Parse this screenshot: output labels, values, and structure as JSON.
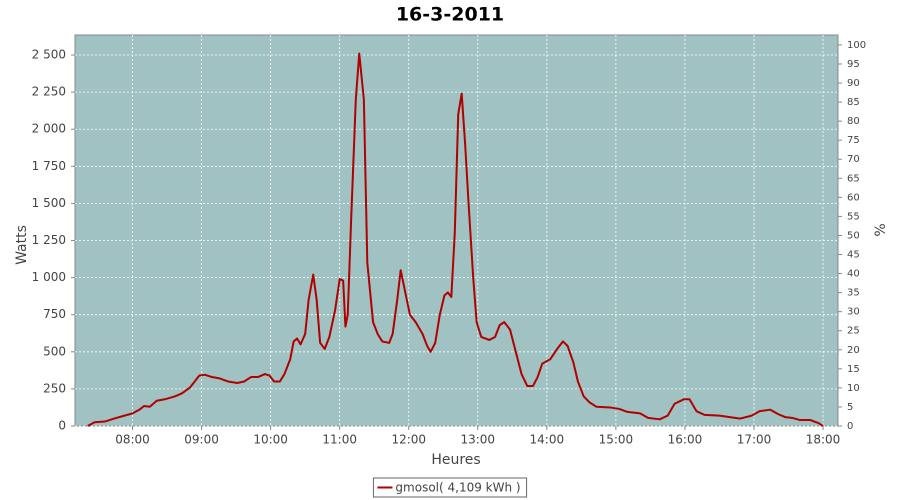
{
  "chart_data": {
    "type": "line",
    "title": "16-3-2011",
    "x_label": "Heures",
    "y_label": "Watts",
    "y2_label": "%",
    "x": [
      441,
      447,
      456,
      464,
      473,
      480,
      486,
      490,
      495,
      501,
      508,
      517,
      523,
      530,
      534,
      538,
      543,
      549,
      556,
      563,
      571,
      577,
      583,
      589,
      595,
      599,
      603,
      608,
      612,
      617,
      620,
      623,
      626,
      630,
      633,
      637,
      640,
      643,
      647,
      651,
      656,
      660,
      663,
      665,
      667,
      670,
      674,
      677,
      681,
      684,
      689,
      693,
      697,
      703,
      706,
      710,
      713,
      717,
      721,
      726,
      732,
      736,
      739,
      743,
      747,
      751,
      754,
      757,
      760,
      763,
      766,
      769,
      772,
      776,
      779,
      783,
      790,
      795,
      799,
      803,
      808,
      813,
      818,
      823,
      828,
      832,
      836,
      843,
      849,
      854,
      858,
      863,
      867,
      872,
      877,
      883,
      895,
      903,
      910,
      921,
      928,
      938,
      945,
      951,
      959,
      964,
      970,
      977,
      990,
      999,
      1008,
      1018,
      1025,
      1034,
      1041,
      1047,
      1053,
      1060,
      1069,
      1076,
      1080
    ],
    "series": [
      {
        "name": "gmosol( 4,109 kWh )",
        "color": "#b00000",
        "values": [
          0,
          25,
          30,
          50,
          70,
          85,
          110,
          135,
          130,
          170,
          180,
          200,
          220,
          260,
          300,
          340,
          345,
          330,
          320,
          300,
          290,
          300,
          330,
          330,
          350,
          340,
          300,
          300,
          350,
          450,
          570,
          590,
          550,
          620,
          850,
          1020,
          850,
          560,
          520,
          600,
          780,
          990,
          980,
          670,
          750,
          1400,
          2200,
          2510,
          2200,
          1100,
          700,
          620,
          570,
          560,
          620,
          850,
          1050,
          900,
          750,
          700,
          620,
          540,
          500,
          560,
          750,
          880,
          900,
          870,
          1300,
          2100,
          2240,
          1900,
          1500,
          1000,
          700,
          600,
          580,
          600,
          680,
          700,
          650,
          500,
          350,
          270,
          270,
          330,
          420,
          450,
          520,
          570,
          540,
          430,
          300,
          200,
          160,
          130,
          125,
          115,
          95,
          85,
          55,
          45,
          70,
          150,
          180,
          180,
          100,
          75,
          70,
          60,
          50,
          70,
          100,
          110,
          80,
          60,
          55,
          40,
          40,
          20,
          0
        ]
      }
    ],
    "xlim": [
      430,
      1093
    ],
    "xticks": [
      {
        "value": 480,
        "label": "08:00"
      },
      {
        "value": 540,
        "label": "09:00"
      },
      {
        "value": 600,
        "label": "10:00"
      },
      {
        "value": 660,
        "label": "11:00"
      },
      {
        "value": 720,
        "label": "12:00"
      },
      {
        "value": 780,
        "label": "13:00"
      },
      {
        "value": 840,
        "label": "14:00"
      },
      {
        "value": 900,
        "label": "15:00"
      },
      {
        "value": 960,
        "label": "16:00"
      },
      {
        "value": 1020,
        "label": "17:00"
      },
      {
        "value": 1080,
        "label": "18:00"
      }
    ],
    "ylim": [
      0,
      2635
    ],
    "yticks": [
      0,
      250,
      500,
      750,
      {
        "value": 1000,
        "label": "1 000"
      },
      {
        "value": 1250,
        "label": "1 250"
      },
      {
        "value": 1500,
        "label": "1 500"
      },
      {
        "value": 1750,
        "label": "1 750"
      },
      {
        "value": 2000,
        "label": "2 000"
      },
      {
        "value": 2250,
        "label": "2 250"
      },
      {
        "value": 2500,
        "label": "2 500"
      }
    ],
    "y2lim": [
      0,
      102.6
    ],
    "y2ticks": [
      0,
      5,
      10,
      15,
      20,
      25,
      30,
      35,
      40,
      45,
      50,
      55,
      60,
      65,
      70,
      75,
      80,
      85,
      90,
      95,
      100
    ],
    "grid": true,
    "plot_background": "#a0c2c2",
    "legend": "bottom"
  }
}
